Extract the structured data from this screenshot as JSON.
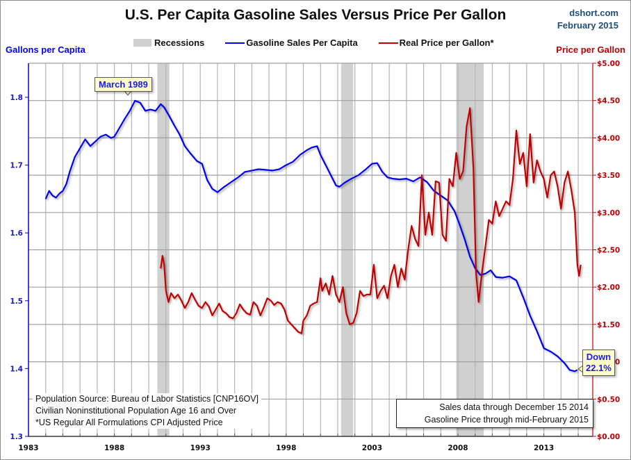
{
  "header": {
    "title": "U.S. Per Capita Gasoline Sales Versus Price Per Gallon",
    "source_line1": "dshort.com",
    "source_line2": "February 2015"
  },
  "legend": {
    "recessions": "Recessions",
    "sales": "Gasoline Sales Per Capita",
    "price": "Real Price per Gallon*"
  },
  "colors": {
    "sales": "#0000ee",
    "price": "#c00000",
    "recession": "#d0d0d0",
    "grid": "#b4b4b4"
  },
  "annotations": {
    "peak_label": "March 1989",
    "down_line1": "Down",
    "down_line2": "22.1%",
    "notes_left": [
      "Population Source: Bureau of Labor Statistics [CNP16OV]",
      "Civilian Noninstitutional Population  Age 16 and Over",
      "*US Regular All Formulations CPI Adjusted Price"
    ],
    "notes_right": [
      "Sales data through December 15 2014",
      "Gasoline Price through mid-February 2015"
    ]
  },
  "chart_data": {
    "type": "line",
    "title": "U.S. Per Capita Gasoline Sales Versus Price Per Gallon",
    "xlabel": "",
    "ylabel": "Gallons per Capita",
    "y2label": "Price per Gallon",
    "xlim": [
      1983,
      2015.8
    ],
    "ylim": [
      1.3,
      1.85
    ],
    "y2lim": [
      0,
      5
    ],
    "x_ticks": [
      "1983",
      "1988",
      "1993",
      "1998",
      "2003",
      "2008",
      "2013"
    ],
    "y_ticks": [
      "1.3",
      "1.4",
      "1.5",
      "1.6",
      "1.7",
      "1.8"
    ],
    "y2_ticks": [
      "$0.00",
      "$0.50",
      "$1.00",
      "$1.50",
      "$2.00",
      "$2.50",
      "$3.00",
      "$3.50",
      "$4.00",
      "$4.50",
      "$5.00"
    ],
    "grid": true,
    "legend_position": "top",
    "recessions": [
      [
        1990.5,
        1991.2
      ],
      [
        2001.2,
        2001.9
      ],
      [
        2007.9,
        2009.5
      ]
    ],
    "series": [
      {
        "name": "Gasoline Sales Per Capita",
        "axis": "left",
        "x": [
          1984.0,
          1984.2,
          1984.4,
          1984.6,
          1984.8,
          1985.0,
          1985.2,
          1985.4,
          1985.7,
          1986.0,
          1986.3,
          1986.6,
          1986.9,
          1987.2,
          1987.5,
          1987.8,
          1988.0,
          1988.3,
          1988.6,
          1988.9,
          1989.2,
          1989.5,
          1989.8,
          1990.1,
          1990.4,
          1990.7,
          1990.9,
          1991.2,
          1991.5,
          1991.8,
          1992.1,
          1992.4,
          1992.8,
          1993.1,
          1993.4,
          1993.7,
          1994.0,
          1994.4,
          1994.8,
          1995.2,
          1995.6,
          1996.0,
          1996.4,
          1996.8,
          1997.2,
          1997.6,
          1998.0,
          1998.4,
          1998.8,
          1999.2,
          1999.5,
          1999.8,
          2000.0,
          2000.3,
          2000.6,
          2000.9,
          2001.1,
          2001.4,
          2001.8,
          2002.2,
          2002.6,
          2003.0,
          2003.3,
          2003.6,
          2003.9,
          2004.2,
          2004.6,
          2005.0,
          2005.4,
          2005.8,
          2006.2,
          2006.6,
          2007.0,
          2007.4,
          2007.8,
          2008.1,
          2008.4,
          2008.7,
          2009.0,
          2009.3,
          2009.6,
          2009.9,
          2010.2,
          2010.6,
          2011.0,
          2011.4,
          2011.8,
          2012.2,
          2012.6,
          2013.0,
          2013.4,
          2013.8,
          2014.2,
          2014.5,
          2014.8,
          2014.95
        ],
        "values": [
          1.65,
          1.662,
          1.655,
          1.652,
          1.658,
          1.662,
          1.672,
          1.69,
          1.712,
          1.725,
          1.738,
          1.728,
          1.735,
          1.742,
          1.745,
          1.74,
          1.742,
          1.755,
          1.768,
          1.78,
          1.795,
          1.792,
          1.78,
          1.782,
          1.78,
          1.79,
          1.785,
          1.772,
          1.758,
          1.745,
          1.728,
          1.718,
          1.706,
          1.702,
          1.678,
          1.665,
          1.66,
          1.668,
          1.675,
          1.682,
          1.69,
          1.692,
          1.694,
          1.693,
          1.692,
          1.694,
          1.7,
          1.705,
          1.715,
          1.722,
          1.726,
          1.728,
          1.715,
          1.7,
          1.685,
          1.67,
          1.668,
          1.674,
          1.68,
          1.685,
          1.693,
          1.702,
          1.703,
          1.69,
          1.682,
          1.68,
          1.679,
          1.68,
          1.676,
          1.682,
          1.675,
          1.662,
          1.655,
          1.648,
          1.632,
          1.612,
          1.59,
          1.565,
          1.548,
          1.538,
          1.54,
          1.545,
          1.535,
          1.534,
          1.536,
          1.53,
          1.505,
          1.478,
          1.455,
          1.43,
          1.425,
          1.418,
          1.408,
          1.398,
          1.396,
          1.398
        ]
      },
      {
        "name": "Real Price per Gallon*",
        "axis": "right",
        "x": [
          1990.7,
          1990.8,
          1990.9,
          1991.0,
          1991.15,
          1991.3,
          1991.5,
          1991.7,
          1991.9,
          1992.1,
          1992.3,
          1992.5,
          1992.7,
          1992.9,
          1993.1,
          1993.3,
          1993.5,
          1993.7,
          1993.9,
          1994.1,
          1994.3,
          1994.5,
          1994.7,
          1994.9,
          1995.1,
          1995.3,
          1995.5,
          1995.7,
          1995.9,
          1996.1,
          1996.3,
          1996.5,
          1996.7,
          1996.9,
          1997.1,
          1997.3,
          1997.5,
          1997.7,
          1997.9,
          1998.1,
          1998.3,
          1998.5,
          1998.7,
          1998.9,
          1999.0,
          1999.2,
          1999.4,
          1999.6,
          1999.8,
          2000.0,
          2000.1,
          2000.3,
          2000.5,
          2000.7,
          2000.9,
          2001.1,
          2001.3,
          2001.5,
          2001.7,
          2001.9,
          2002.1,
          2002.3,
          2002.5,
          2002.7,
          2002.9,
          2003.1,
          2003.3,
          2003.5,
          2003.7,
          2003.9,
          2004.1,
          2004.3,
          2004.5,
          2004.7,
          2004.9,
          2005.1,
          2005.3,
          2005.5,
          2005.7,
          2005.9,
          2006.1,
          2006.3,
          2006.5,
          2006.7,
          2006.9,
          2007.1,
          2007.3,
          2007.5,
          2007.7,
          2007.9,
          2008.1,
          2008.3,
          2008.5,
          2008.7,
          2008.9,
          2009.05,
          2009.2,
          2009.4,
          2009.6,
          2009.8,
          2010.0,
          2010.2,
          2010.4,
          2010.6,
          2010.8,
          2011.0,
          2011.2,
          2011.4,
          2011.6,
          2011.8,
          2012.0,
          2012.2,
          2012.4,
          2012.6,
          2012.8,
          2013.0,
          2013.2,
          2013.4,
          2013.6,
          2013.8,
          2014.0,
          2014.2,
          2014.4,
          2014.6,
          2014.8,
          2014.95,
          2015.05,
          2015.15
        ],
        "values": [
          2.25,
          2.42,
          2.3,
          1.95,
          1.8,
          1.92,
          1.85,
          1.9,
          1.82,
          1.72,
          1.8,
          1.92,
          1.83,
          1.75,
          1.72,
          1.8,
          1.74,
          1.62,
          1.7,
          1.78,
          1.68,
          1.65,
          1.6,
          1.58,
          1.65,
          1.77,
          1.7,
          1.65,
          1.63,
          1.8,
          1.75,
          1.62,
          1.73,
          1.85,
          1.82,
          1.76,
          1.8,
          1.78,
          1.7,
          1.55,
          1.5,
          1.45,
          1.4,
          1.38,
          1.55,
          1.62,
          1.75,
          1.78,
          1.8,
          2.12,
          1.95,
          2.05,
          1.9,
          2.15,
          1.9,
          1.8,
          2.0,
          1.65,
          1.5,
          1.52,
          1.65,
          1.95,
          1.88,
          1.9,
          1.9,
          2.3,
          1.85,
          1.95,
          2.02,
          1.85,
          2.15,
          2.3,
          2.0,
          2.25,
          2.1,
          2.5,
          2.82,
          2.65,
          2.55,
          3.5,
          2.7,
          3.0,
          2.7,
          3.42,
          3.4,
          2.7,
          2.62,
          3.45,
          3.35,
          3.8,
          3.45,
          3.55,
          4.15,
          4.4,
          3.6,
          2.2,
          1.8,
          2.2,
          2.55,
          2.9,
          2.85,
          3.15,
          2.95,
          3.05,
          3.15,
          3.1,
          3.45,
          4.1,
          3.65,
          3.8,
          3.35,
          4.05,
          3.4,
          3.7,
          3.55,
          3.45,
          3.2,
          3.5,
          3.55,
          3.35,
          3.05,
          3.4,
          3.55,
          3.3,
          3.0,
          2.3,
          2.15,
          2.3
        ]
      }
    ]
  }
}
